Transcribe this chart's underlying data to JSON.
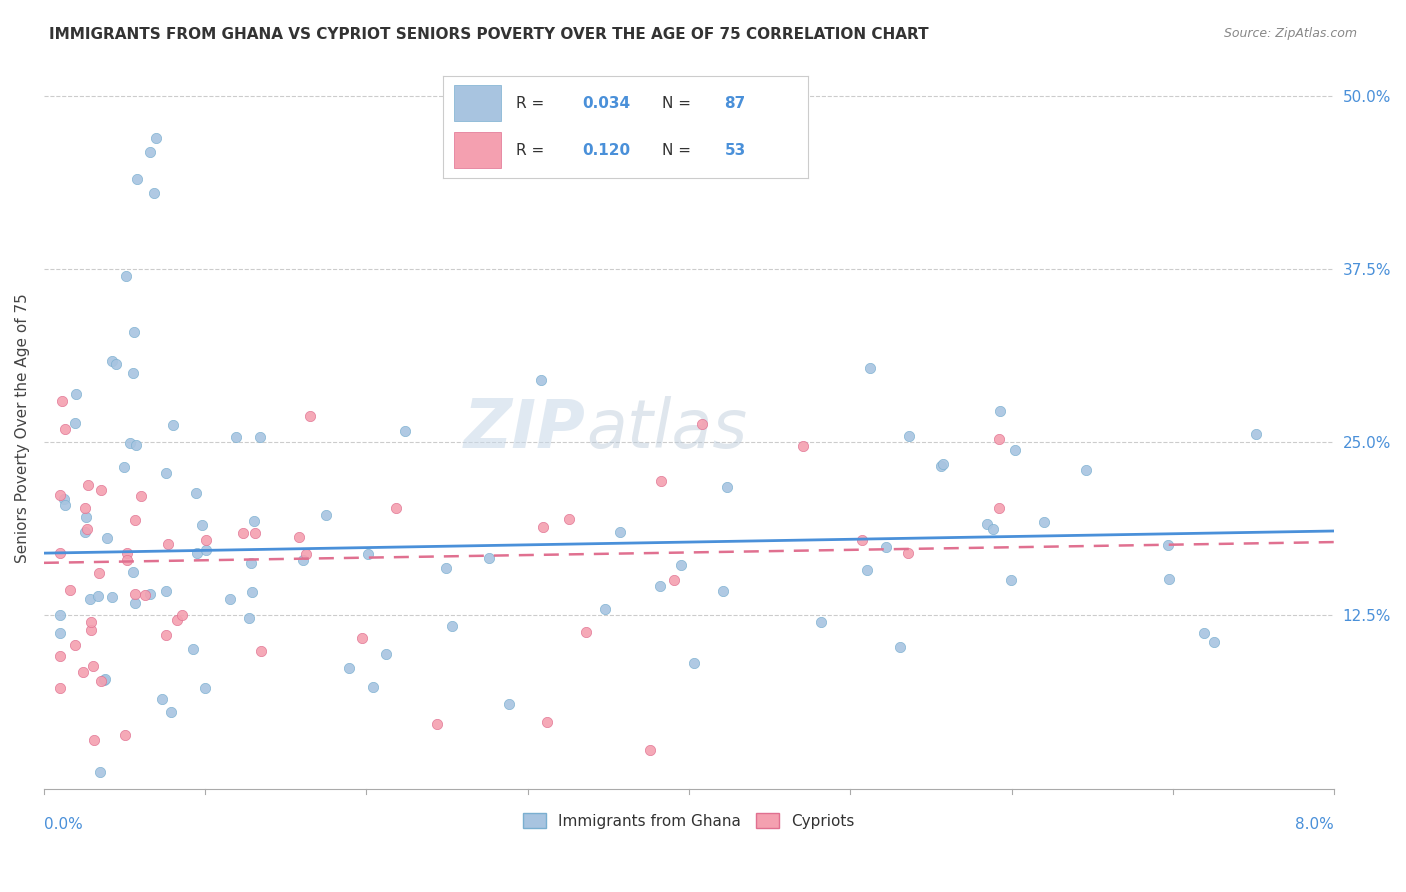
{
  "title": "IMMIGRANTS FROM GHANA VS CYPRIOT SENIORS POVERTY OVER THE AGE OF 75 CORRELATION CHART",
  "source": "Source: ZipAtlas.com",
  "ylabel": "Seniors Poverty Over the Age of 75",
  "x_range": [
    0.0,
    0.08
  ],
  "y_range": [
    0.0,
    0.52
  ],
  "legend_r1": "0.034",
  "legend_n1": "87",
  "legend_r2": "0.120",
  "legend_n2": "53",
  "legend_label1": "Immigrants from Ghana",
  "legend_label2": "Cypriots",
  "blue_color": "#a8c4e0",
  "pink_color": "#f4a0b0",
  "blue_edge": "#7aafd0",
  "pink_edge": "#e07090",
  "trend_blue": "#4a90d9",
  "trend_pink": "#e07090",
  "watermark_zip": "ZIP",
  "watermark_atlas": "atlas",
  "right_tick_color": "#4a90d9",
  "grid_color": "#cccccc",
  "title_color": "#333333",
  "source_color": "#888888"
}
